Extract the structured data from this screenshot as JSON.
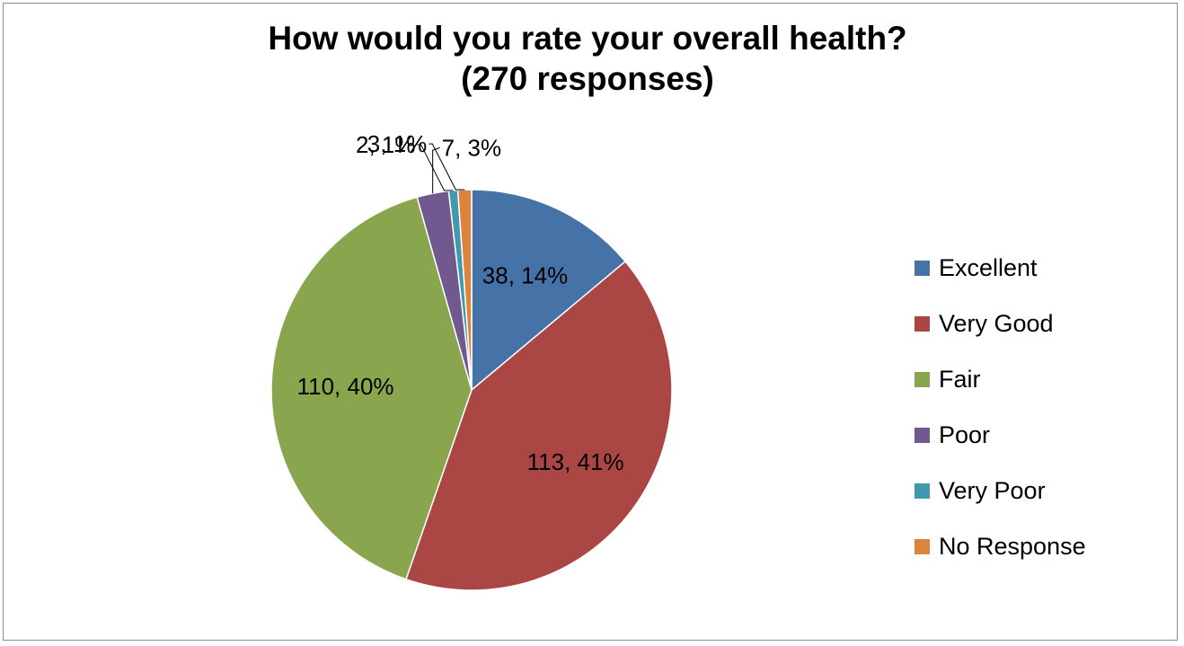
{
  "chart_data": {
    "type": "pie",
    "title_line1": "How would you rate your overall health?",
    "title_line2": "(270 responses)",
    "categories": [
      "Excellent",
      "Very Good",
      "Fair",
      "Poor",
      "Very Poor",
      "No Response"
    ],
    "values": [
      38,
      113,
      110,
      7,
      2,
      3
    ],
    "percents": [
      "14%",
      "41%",
      "40%",
      "3%",
      "1%",
      "1%"
    ],
    "data_labels": [
      "38, 14%",
      "113, 41%",
      "110, 40%",
      "7, 3%",
      "2, 1%",
      "3, 1%"
    ],
    "colors": [
      "#4572A7",
      "#AA4643",
      "#89A54E",
      "#71588F",
      "#4198AF",
      "#DB843D"
    ],
    "legend_position": "right",
    "start_angle": "12 o'clock",
    "direction": "clockwise"
  }
}
